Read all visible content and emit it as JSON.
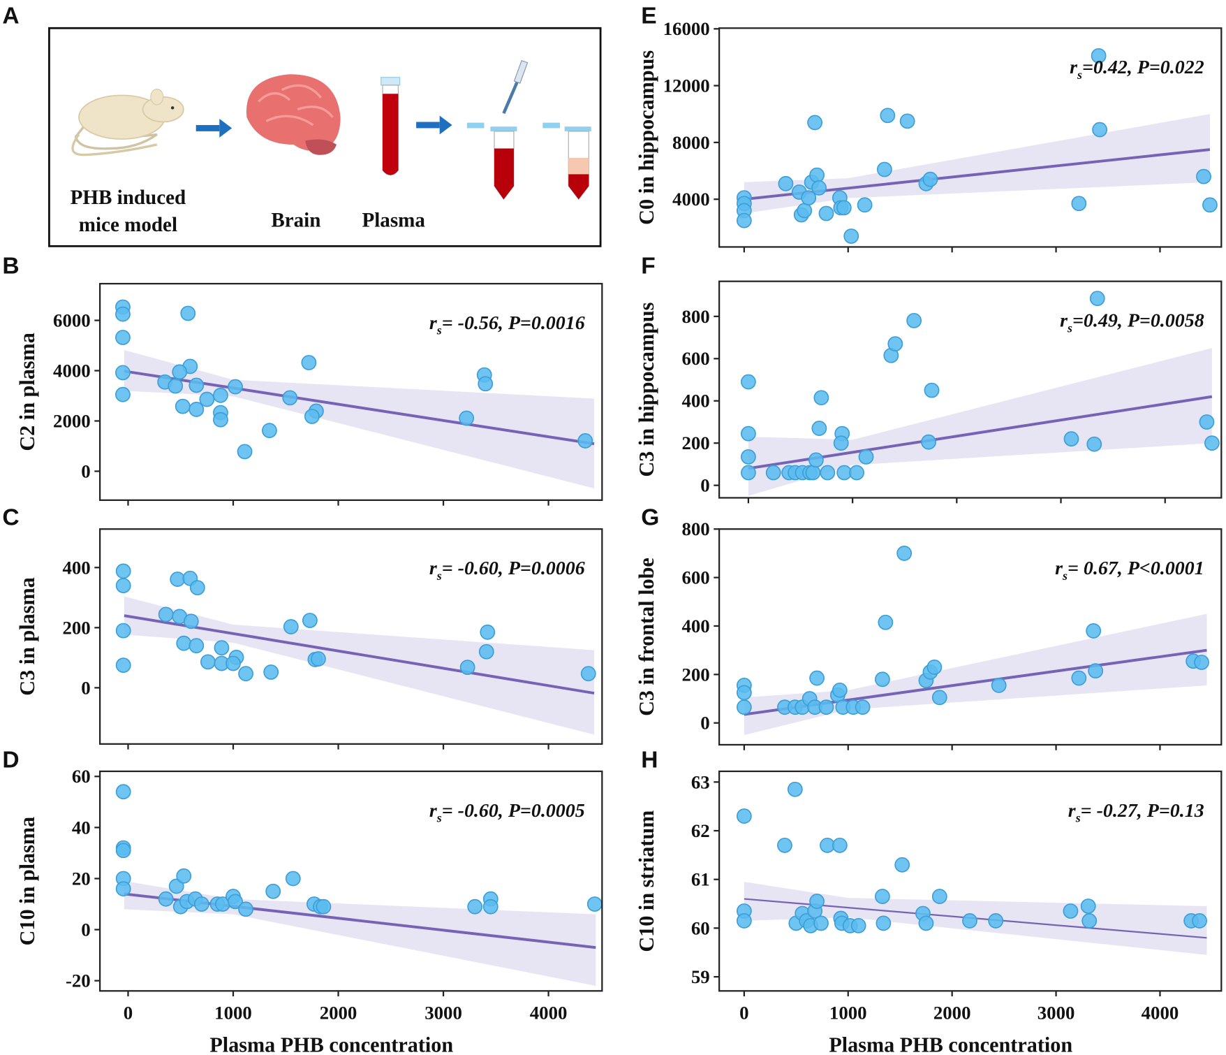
{
  "panel_letters": [
    "A",
    "B",
    "C",
    "D",
    "E",
    "F",
    "G",
    "H"
  ],
  "panel_a": {
    "labels": {
      "mice_line1": "PHB induced",
      "mice_line2": "mice model",
      "brain": "Brain",
      "plasma": "Plasma"
    },
    "icons": [
      "mouse-icon",
      "arrow-right-icon",
      "brain-icon",
      "blood-tube-icon",
      "arrow-right-icon",
      "pipette-icon",
      "centrifuge-tube-icon",
      "centrifuge-tube-separated-icon"
    ],
    "colors": {
      "arrow": "#1f6fc0",
      "blood": "#c0000d",
      "plasma": "#f6c8b0",
      "brain": "#e8706e",
      "mouse": "#efe3c8"
    }
  },
  "colors": {
    "point_fill": "#5bbcef",
    "point_stroke": "#3d9fd8",
    "fit_line": "#7563b5",
    "ci_band": "#e7e5f3"
  },
  "chart_data": [
    {
      "panel": "B",
      "type": "scatter",
      "ylabel": "C2 in plasma",
      "xlabel": "",
      "xlim": [
        -268,
        4510
      ],
      "ylim": [
        -1150,
        7460
      ],
      "xticks": [
        0,
        1000,
        2000,
        3000,
        4000
      ],
      "xtick_labels": [],
      "yticks": [
        0,
        2000,
        4000,
        6000
      ],
      "ytick_labels": [
        "0",
        "2000",
        "4000",
        "6000"
      ],
      "annotation": {
        "r": "r",
        "sub": "s",
        "text": "= -0.56, P=0.0016"
      },
      "points": [
        [
          -50,
          6530
        ],
        [
          -50,
          6250
        ],
        [
          -50,
          5320
        ],
        [
          -50,
          3920
        ],
        [
          -50,
          3050
        ],
        [
          570,
          6280
        ],
        [
          590,
          4170
        ],
        [
          490,
          3950
        ],
        [
          350,
          3550
        ],
        [
          450,
          3390
        ],
        [
          650,
          3420
        ],
        [
          520,
          2580
        ],
        [
          650,
          2460
        ],
        [
          750,
          2860
        ],
        [
          880,
          3020
        ],
        [
          880,
          2330
        ],
        [
          880,
          2050
        ],
        [
          1020,
          3360
        ],
        [
          1110,
          780
        ],
        [
          1345,
          1620
        ],
        [
          1540,
          2920
        ],
        [
          1720,
          4320
        ],
        [
          1790,
          2390
        ],
        [
          1750,
          2180
        ],
        [
          3390,
          3830
        ],
        [
          3400,
          3480
        ],
        [
          3220,
          2110
        ],
        [
          4350,
          1210
        ]
      ],
      "fit": {
        "x": [
          -37,
          4435
        ],
        "y": [
          3980,
          1090
        ]
      },
      "band": {
        "x": [
          -37,
          1000,
          4435
        ],
        "upper": [
          4820,
          3640,
          2890
        ],
        "lower": [
          3200,
          2980,
          -680
        ]
      }
    },
    {
      "panel": "C",
      "type": "scatter",
      "ylabel": "C3 in plasma",
      "xlabel": "",
      "xlim": [
        -268,
        4510
      ],
      "ylim": [
        -187,
        528
      ],
      "xticks": [
        0,
        1000,
        2000,
        3000,
        4000
      ],
      "xtick_labels": [],
      "yticks": [
        0,
        200,
        400
      ],
      "ytick_labels": [
        "0",
        "200",
        "400"
      ],
      "annotation": {
        "r": "r",
        "sub": "s",
        "text": "= -0.60, P=0.0006"
      },
      "points": [
        [
          -45,
          388
        ],
        [
          -45,
          340
        ],
        [
          -45,
          190
        ],
        [
          -45,
          75
        ],
        [
          470,
          361
        ],
        [
          590,
          364
        ],
        [
          660,
          333
        ],
        [
          360,
          244
        ],
        [
          490,
          237
        ],
        [
          600,
          221
        ],
        [
          530,
          148
        ],
        [
          650,
          140
        ],
        [
          760,
          86
        ],
        [
          890,
          133
        ],
        [
          890,
          81
        ],
        [
          1030,
          101
        ],
        [
          1000,
          81
        ],
        [
          1120,
          47
        ],
        [
          1360,
          52
        ],
        [
          1550,
          203
        ],
        [
          1730,
          224
        ],
        [
          1780,
          94
        ],
        [
          1810,
          96
        ],
        [
          3420,
          185
        ],
        [
          3410,
          120
        ],
        [
          3230,
          68
        ],
        [
          4380,
          47
        ]
      ],
      "fit": {
        "x": [
          -37,
          4435
        ],
        "y": [
          240,
          -18
        ]
      },
      "band": {
        "x": [
          -37,
          1000,
          4435
        ],
        "upper": [
          304,
          210,
          125
        ],
        "lower": [
          177,
          150,
          -156
        ]
      }
    },
    {
      "panel": "D",
      "type": "scatter",
      "ylabel": "C10 in plasma",
      "xlabel": "Plasma PHB concentration",
      "xlim": [
        -268,
        4510
      ],
      "ylim": [
        -24,
        62
      ],
      "xticks": [
        0,
        1000,
        2000,
        3000,
        4000
      ],
      "xtick_labels": [
        "0",
        "1000",
        "2000",
        "3000",
        "4000"
      ],
      "yticks": [
        -20,
        0,
        20,
        40,
        60
      ],
      "ytick_labels": [
        "-20",
        "0",
        "20",
        "40",
        "60"
      ],
      "annotation": {
        "r": "r",
        "sub": "s",
        "text": "= -0.60, P=0.0005"
      },
      "points": [
        [
          -45,
          54
        ],
        [
          -45,
          32
        ],
        [
          -45,
          31
        ],
        [
          -45,
          20
        ],
        [
          -45,
          16
        ],
        [
          360,
          12
        ],
        [
          460,
          17
        ],
        [
          500,
          9
        ],
        [
          530,
          21
        ],
        [
          560,
          11
        ],
        [
          640,
          12
        ],
        [
          700,
          10
        ],
        [
          850,
          10
        ],
        [
          900,
          10
        ],
        [
          1000,
          13
        ],
        [
          1020,
          11
        ],
        [
          1120,
          8
        ],
        [
          1380,
          15
        ],
        [
          1570,
          20
        ],
        [
          1770,
          10
        ],
        [
          1830,
          9
        ],
        [
          1860,
          9
        ],
        [
          3300,
          9
        ],
        [
          3450,
          12
        ],
        [
          3450,
          9
        ],
        [
          4440,
          10
        ]
      ],
      "fit": {
        "x": [
          -37,
          4450
        ],
        "y": [
          14,
          -7
        ]
      },
      "band": {
        "x": [
          -37,
          1000,
          4450
        ],
        "upper": [
          19,
          12,
          6
        ],
        "lower": [
          8,
          6,
          -22
        ]
      }
    },
    {
      "panel": "E",
      "type": "scatter",
      "ylabel": "C0 in hippocampus",
      "xlabel": "",
      "xlim": [
        -240,
        4590
      ],
      "ylim": [
        640,
        16050
      ],
      "xticks": [
        0,
        1000,
        2000,
        3000,
        4000
      ],
      "xtick_labels": [],
      "yticks": [
        4000,
        8000,
        12000,
        16000
      ],
      "ytick_labels": [
        "4000",
        "8000",
        "12000",
        "16000"
      ],
      "annotation": {
        "r": "r",
        "sub": "s",
        "text": "=0.42, P=0.022"
      },
      "points": [
        [
          0,
          4100
        ],
        [
          0,
          3700
        ],
        [
          0,
          3200
        ],
        [
          0,
          2500
        ],
        [
          400,
          5100
        ],
        [
          530,
          4500
        ],
        [
          550,
          2900
        ],
        [
          580,
          3200
        ],
        [
          620,
          4100
        ],
        [
          680,
          9400
        ],
        [
          650,
          5200
        ],
        [
          700,
          5700
        ],
        [
          720,
          4800
        ],
        [
          790,
          3000
        ],
        [
          920,
          4100
        ],
        [
          930,
          3400
        ],
        [
          960,
          3400
        ],
        [
          1030,
          1400
        ],
        [
          1160,
          3600
        ],
        [
          1350,
          6100
        ],
        [
          1380,
          9900
        ],
        [
          1570,
          9500
        ],
        [
          1750,
          5100
        ],
        [
          1790,
          5400
        ],
        [
          3220,
          3700
        ],
        [
          3410,
          14100
        ],
        [
          3420,
          8900
        ],
        [
          4420,
          5600
        ],
        [
          4480,
          3600
        ]
      ],
      "fit": {
        "x": [
          0,
          4480
        ],
        "y": [
          4000,
          7500
        ]
      },
      "band": {
        "x": [
          0,
          1000,
          4480
        ],
        "upper": [
          5200,
          5480,
          10000
        ],
        "lower": [
          3000,
          4080,
          5200
        ]
      }
    },
    {
      "panel": "F",
      "type": "scatter",
      "ylabel": "C3 in hippocampus",
      "xlabel": "",
      "xlim": [
        -280,
        4540
      ],
      "ylim": [
        -59,
        966
      ],
      "xticks": [
        0,
        1000,
        2000,
        3000,
        4000
      ],
      "xtick_labels": [],
      "yticks": [
        0,
        200,
        400,
        600,
        800
      ],
      "ytick_labels": [
        "0",
        "200",
        "400",
        "600",
        "800"
      ],
      "annotation": {
        "r": "r",
        "sub": "s",
        "text": "=0.49, P=0.0058"
      },
      "points": [
        [
          0,
          490
        ],
        [
          0,
          245
        ],
        [
          0,
          135
        ],
        [
          0,
          60
        ],
        [
          240,
          60
        ],
        [
          390,
          60
        ],
        [
          450,
          60
        ],
        [
          520,
          60
        ],
        [
          590,
          60
        ],
        [
          620,
          60
        ],
        [
          650,
          120
        ],
        [
          680,
          270
        ],
        [
          700,
          415
        ],
        [
          760,
          60
        ],
        [
          900,
          245
        ],
        [
          890,
          200
        ],
        [
          920,
          60
        ],
        [
          1040,
          60
        ],
        [
          1130,
          135
        ],
        [
          1370,
          615
        ],
        [
          1410,
          670
        ],
        [
          1590,
          780
        ],
        [
          1730,
          205
        ],
        [
          1760,
          450
        ],
        [
          3100,
          220
        ],
        [
          3320,
          195
        ],
        [
          3350,
          885
        ],
        [
          4400,
          300
        ],
        [
          4450,
          200
        ]
      ],
      "fit": {
        "x": [
          0,
          4450
        ],
        "y": [
          80,
          420
        ]
      },
      "band": {
        "x": [
          0,
          1000,
          4450
        ],
        "upper": [
          230,
          216,
          650
        ],
        "lower": [
          -50,
          96,
          200
        ]
      }
    },
    {
      "panel": "G",
      "type": "scatter",
      "ylabel": "C3 in frontal lobe",
      "xlabel": "",
      "xlim": [
        -240,
        4590
      ],
      "ylim": [
        -90,
        800
      ],
      "xticks": [
        0,
        1000,
        2000,
        3000,
        4000
      ],
      "xtick_labels": [],
      "yticks": [
        0,
        200,
        400,
        600,
        800
      ],
      "ytick_labels": [
        "0",
        "200",
        "400",
        "600",
        "800"
      ],
      "annotation": {
        "r": "r",
        "sub": "s",
        "text": "= 0.67, P<0.0001"
      },
      "points": [
        [
          0,
          155
        ],
        [
          0,
          125
        ],
        [
          0,
          65
        ],
        [
          390,
          65
        ],
        [
          490,
          65
        ],
        [
          560,
          65
        ],
        [
          630,
          100
        ],
        [
          680,
          65
        ],
        [
          700,
          185
        ],
        [
          790,
          65
        ],
        [
          900,
          115
        ],
        [
          920,
          135
        ],
        [
          950,
          65
        ],
        [
          1050,
          65
        ],
        [
          1140,
          65
        ],
        [
          1330,
          180
        ],
        [
          1360,
          415
        ],
        [
          1540,
          700
        ],
        [
          1750,
          175
        ],
        [
          1790,
          210
        ],
        [
          1830,
          230
        ],
        [
          1880,
          105
        ],
        [
          2450,
          155
        ],
        [
          3220,
          185
        ],
        [
          3360,
          380
        ],
        [
          3380,
          215
        ],
        [
          4320,
          255
        ],
        [
          4400,
          250
        ]
      ],
      "fit": {
        "x": [
          0,
          4450
        ],
        "y": [
          35,
          300
        ]
      },
      "band": {
        "x": [
          0,
          1000,
          4450
        ],
        "upper": [
          105,
          135,
          450
        ],
        "lower": [
          -50,
          55,
          155
        ]
      }
    },
    {
      "panel": "H",
      "type": "scatter",
      "ylabel": "C10 in striatum",
      "xlabel": "Plasma PHB concentration",
      "xlim": [
        -240,
        4590
      ],
      "ylim": [
        58.71,
        63.22
      ],
      "xticks": [
        0,
        1000,
        2000,
        3000,
        4000
      ],
      "xtick_labels": [
        "0",
        "1000",
        "2000",
        "3000",
        "4000"
      ],
      "yticks": [
        59,
        60,
        61,
        62,
        63
      ],
      "ytick_labels": [
        "59",
        "60",
        "61",
        "62",
        "63"
      ],
      "annotation": {
        "r": "r",
        "sub": "s",
        "text": "= -0.27, P=0.13"
      },
      "points": [
        [
          0,
          62.3
        ],
        [
          0,
          60.35
        ],
        [
          0,
          60.15
        ],
        [
          390,
          61.7
        ],
        [
          490,
          62.85
        ],
        [
          500,
          60.1
        ],
        [
          560,
          60.3
        ],
        [
          600,
          60.15
        ],
        [
          640,
          60.05
        ],
        [
          680,
          60.35
        ],
        [
          700,
          60.55
        ],
        [
          740,
          60.1
        ],
        [
          800,
          61.7
        ],
        [
          920,
          61.7
        ],
        [
          930,
          60.2
        ],
        [
          940,
          60.1
        ],
        [
          1020,
          60.05
        ],
        [
          1100,
          60.05
        ],
        [
          1330,
          60.65
        ],
        [
          1340,
          60.1
        ],
        [
          1520,
          61.3
        ],
        [
          1720,
          60.3
        ],
        [
          1750,
          60.1
        ],
        [
          1880,
          60.65
        ],
        [
          2170,
          60.15
        ],
        [
          2420,
          60.15
        ],
        [
          3140,
          60.35
        ],
        [
          3310,
          60.45
        ],
        [
          3320,
          60.15
        ],
        [
          4300,
          60.15
        ],
        [
          4380,
          60.15
        ]
      ],
      "fit": {
        "x": [
          0,
          4450
        ],
        "y": [
          60.6,
          59.8
        ]
      },
      "band": {
        "x": [
          0,
          1000,
          4450
        ],
        "upper": [
          60.95,
          60.62,
          60.45
        ],
        "lower": [
          60.15,
          60.22,
          59.45
        ]
      }
    }
  ]
}
